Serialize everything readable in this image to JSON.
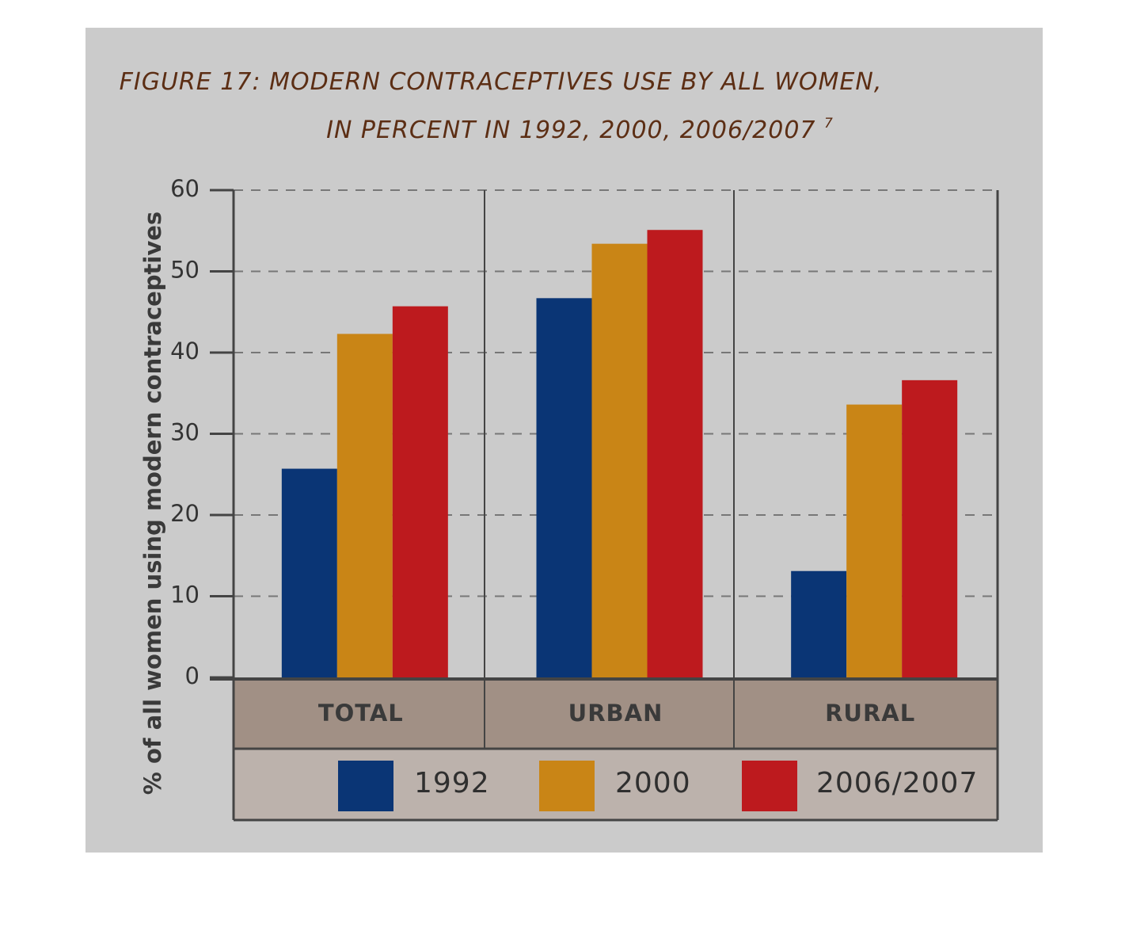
{
  "chart_data": {
    "type": "bar",
    "title_line1": "FIGURE 17: MODERN CONTRACEPTIVES USE BY ALL WOMEN,",
    "title_line2": "IN PERCENT IN 1992, 2000, 2006/2007",
    "title_footnote": "7",
    "ylabel": "% of all women using modern contraceptives",
    "ylim": [
      0,
      60
    ],
    "yticks": [
      0,
      10,
      20,
      30,
      40,
      50,
      60
    ],
    "categories": [
      "TOTAL",
      "URBAN",
      "RURAL"
    ],
    "series": [
      {
        "name": "1992",
        "color": "#0a3575",
        "values": [
          25.7,
          46.7,
          13.1
        ]
      },
      {
        "name": "2000",
        "color": "#c98516",
        "values": [
          42.3,
          53.4,
          33.6
        ]
      },
      {
        "name": "2006/2007",
        "color": "#bd1a1e",
        "values": [
          45.7,
          55.1,
          36.6
        ]
      }
    ],
    "grid": true,
    "legend_position": "bottom"
  }
}
